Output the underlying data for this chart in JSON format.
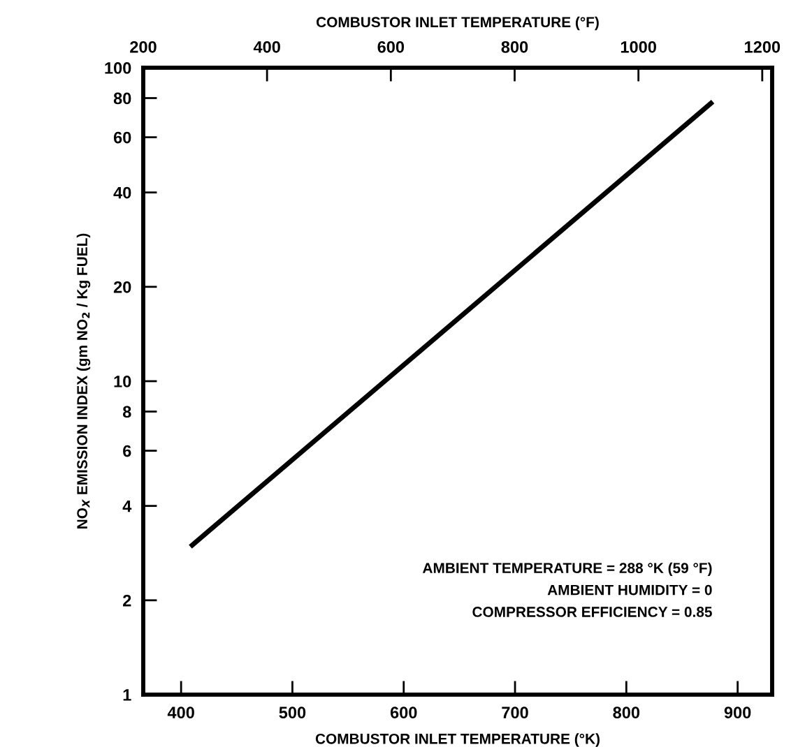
{
  "chart_data": {
    "type": "line",
    "xlabel": "COMBUSTOR INLET TEMPERATURE (°K)",
    "x2label": "COMBUSTOR INLET TEMPERATURE (°F)",
    "ylabel": "NO$_{X}$ EMISSION INDEX (gm NO$_{2}$ / Kg FUEL)",
    "series": [
      {
        "x": [
          410,
          876
        ],
        "values": [
          3.0,
          77
        ],
        "color": "#000000"
      }
    ],
    "xlim": [
      366,
      931
    ],
    "xticks": [
      400,
      500,
      600,
      700,
      800,
      900
    ],
    "x2lim": [
      200,
      1216
    ],
    "x2ticks": [
      200,
      400,
      600,
      800,
      1000,
      1200
    ],
    "ylim": [
      1,
      100
    ],
    "yticks": [
      1,
      2,
      4,
      6,
      8,
      10,
      20,
      40,
      60,
      80,
      100
    ],
    "log": "y",
    "grid": false,
    "legend": false,
    "marker": "none",
    "line_style": "solid",
    "annotations": [
      "AMBIENT TEMPERATURE = 288 °K (59 °F)",
      "AMBIENT HUMIDITY = 0",
      "COMPRESSOR EFFICIENCY = 0.85"
    ]
  }
}
